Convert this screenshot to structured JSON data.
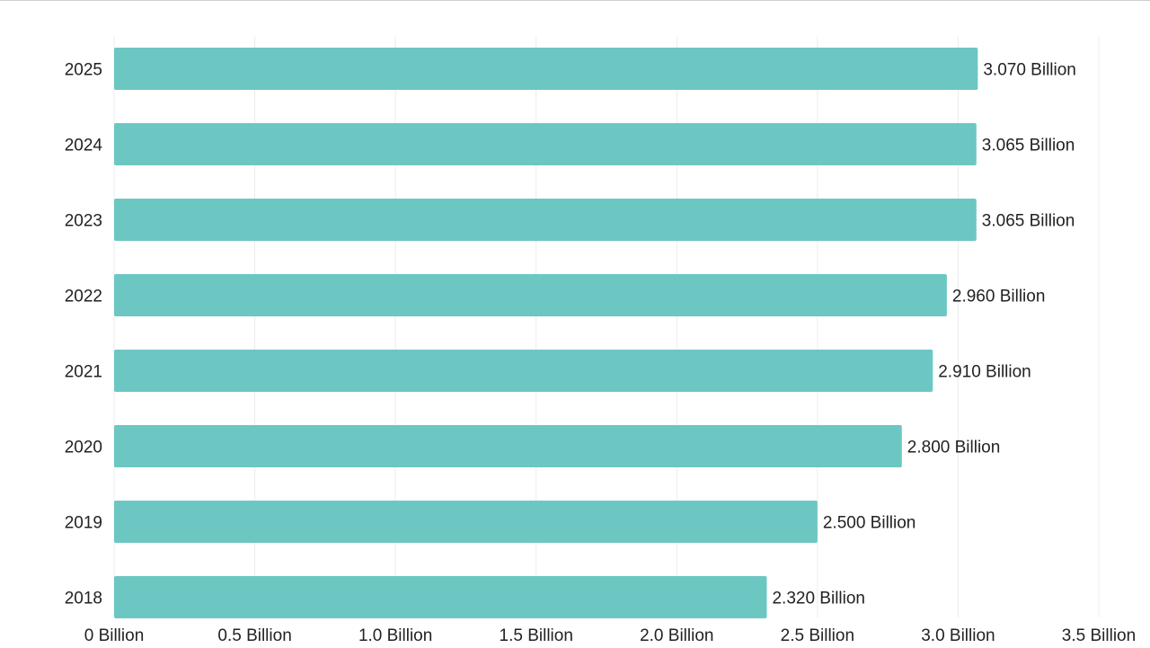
{
  "chart_data": {
    "type": "bar",
    "orientation": "horizontal",
    "categories": [
      "2025",
      "2024",
      "2023",
      "2022",
      "2021",
      "2020",
      "2019",
      "2018"
    ],
    "values": [
      3.07,
      3.065,
      3.065,
      2.96,
      2.91,
      2.8,
      2.5,
      2.32
    ],
    "data_labels": [
      "3.070 Billion",
      "3.065 Billion",
      "3.065 Billion",
      "2.960 Billion",
      "2.910 Billion",
      "2.800 Billion",
      "2.500 Billion",
      "2.320 Billion"
    ],
    "x_ticks": [
      0,
      0.5,
      1.0,
      1.5,
      2.0,
      2.5,
      3.0,
      3.5
    ],
    "x_tick_labels": [
      "0 Billion",
      "0.5 Billion",
      "1.0 Billion",
      "1.5 Billion",
      "2.0 Billion",
      "2.5 Billion",
      "3.0 Billion",
      "3.5 Billion"
    ],
    "xlim": [
      0,
      3.5
    ],
    "title": "",
    "xlabel": "",
    "ylabel": "",
    "grid": "vertical",
    "legend": "none",
    "bar_color": "#6cc7c3",
    "grid_color": "#ececec"
  }
}
